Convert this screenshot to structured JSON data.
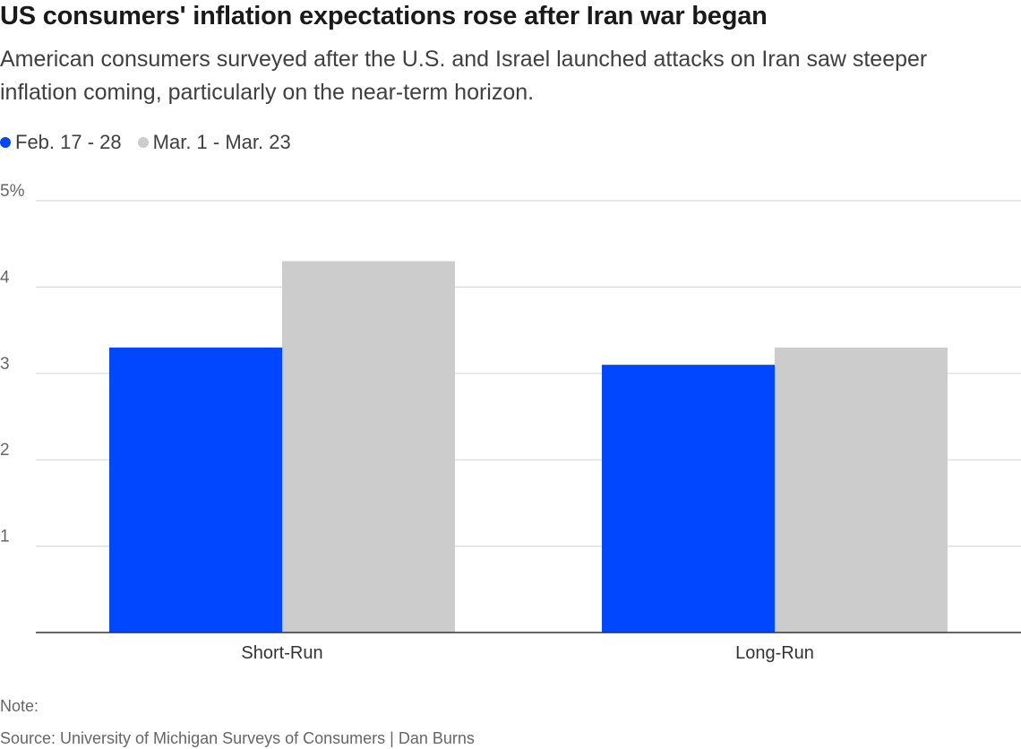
{
  "title": "US consumers' inflation expectations rose after Iran war began",
  "subtitle": "American consumers surveyed after the U.S. and Israel launched attacks on Iran saw steeper inflation coming, particularly on the near-term horizon.",
  "note": "Note:",
  "source": "Source: University of Michigan Surveys of Consumers | Dan Burns",
  "colors": {
    "series_1": "#0047ff",
    "series_2": "#cccccc",
    "grid": "#d9d9d9",
    "axis": "#333333"
  },
  "chart_data": {
    "type": "bar",
    "title": "US consumers' inflation expectations rose after Iran war began",
    "categories": [
      "Short-Run",
      "Long-Run"
    ],
    "series": [
      {
        "name": "Feb. 17 - 28",
        "values": [
          3.3,
          3.1
        ]
      },
      {
        "name": "Mar. 1 - Mar. 23",
        "values": [
          4.3,
          3.3
        ]
      }
    ],
    "y_ticks": [
      {
        "value": 1,
        "label": "1"
      },
      {
        "value": 2,
        "label": "2"
      },
      {
        "value": 3,
        "label": "3"
      },
      {
        "value": 4,
        "label": "4"
      },
      {
        "value": 5,
        "label": "5%"
      }
    ],
    "ylim": [
      0,
      5
    ],
    "grid": true,
    "legend": "top-left"
  }
}
